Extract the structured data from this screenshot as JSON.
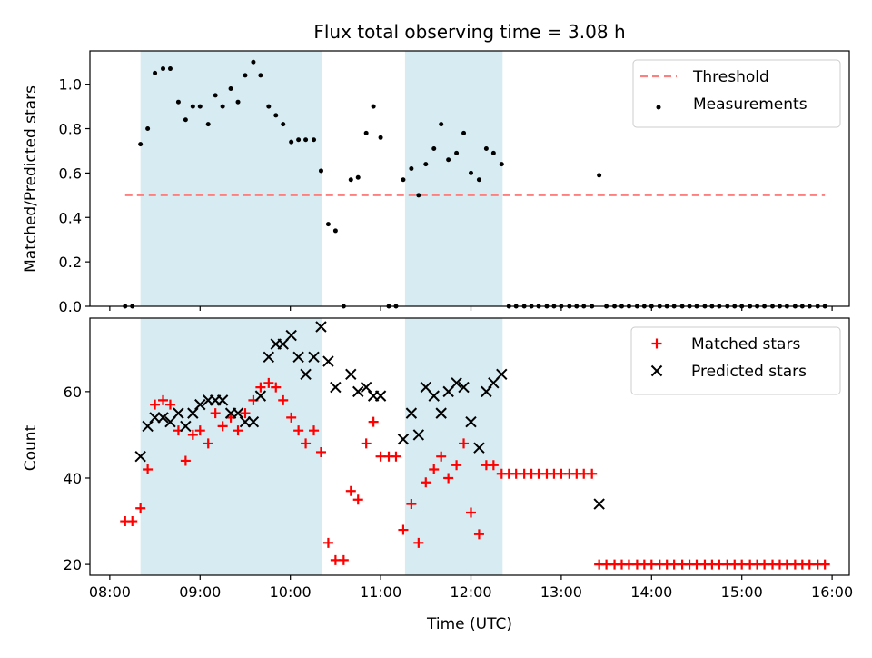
{
  "title": "Flux total observing time = 3.08 h",
  "xlabel": "Time (UTC)",
  "x_ticks": [
    "08:00",
    "09:00",
    "10:00",
    "11:00",
    "12:00",
    "13:00",
    "14:00",
    "15:00",
    "16:00"
  ],
  "x_tick_hours": [
    8,
    9,
    10,
    11,
    12,
    13,
    14,
    15,
    16
  ],
  "xlim": [
    7.78,
    16.19
  ],
  "shaded_intervals": [
    [
      8.34,
      10.35
    ],
    [
      11.27,
      12.35
    ]
  ],
  "shade_color": "#add8e6",
  "chart_data": [
    {
      "type": "scatter",
      "ylabel": "Matched/Predicted stars",
      "ylim": [
        0,
        1.15
      ],
      "y_ticks": [
        "0.0",
        "0.2",
        "0.4",
        "0.6",
        "0.8",
        "1.0"
      ],
      "y_tick_values": [
        0,
        0.2,
        0.4,
        0.6,
        0.8,
        1.0
      ],
      "legend_position": "top-right",
      "threshold": {
        "name": "Threshold",
        "y": 0.5,
        "x_range": [
          8.17,
          15.92
        ],
        "color": "#ff7f7f",
        "style": "dashed"
      },
      "series": [
        {
          "name": "Measurements",
          "color": "#000000",
          "marker": "dot",
          "x": [
            8.17,
            8.25,
            8.34,
            8.42,
            8.5,
            8.59,
            8.67,
            8.76,
            8.84,
            8.92,
            9.0,
            9.09,
            9.17,
            9.25,
            9.34,
            9.42,
            9.5,
            9.59,
            9.67,
            9.76,
            9.84,
            9.92,
            10.01,
            10.09,
            10.17,
            10.26,
            10.34,
            10.42,
            10.5,
            10.59,
            10.67,
            10.75,
            10.84,
            10.92,
            11.0,
            11.09,
            11.17,
            11.25,
            11.34,
            11.42,
            11.5,
            11.59,
            11.67,
            11.75,
            11.84,
            11.92,
            12.0,
            12.09,
            12.17,
            12.25,
            12.34,
            12.42,
            12.5,
            12.59,
            12.67,
            12.75,
            12.84,
            12.92,
            13.0,
            13.09,
            13.17,
            13.25,
            13.34,
            13.42,
            13.5,
            13.59,
            13.67,
            13.75,
            13.84,
            13.92,
            14.0,
            14.09,
            14.17,
            14.25,
            14.34,
            14.42,
            14.5,
            14.59,
            14.67,
            14.75,
            14.84,
            14.92,
            15.0,
            15.09,
            15.17,
            15.25,
            15.34,
            15.42,
            15.5,
            15.59,
            15.67,
            15.75,
            15.84,
            15.92
          ],
          "y": [
            0,
            0,
            0.73,
            0.8,
            1.05,
            1.07,
            1.07,
            0.92,
            0.84,
            0.9,
            0.9,
            0.82,
            0.95,
            0.9,
            0.98,
            0.92,
            1.04,
            1.1,
            1.04,
            0.9,
            0.86,
            0.82,
            0.74,
            0.75,
            0.75,
            0.75,
            0.61,
            0.37,
            0.34,
            0,
            0.57,
            0.58,
            0.78,
            0.9,
            0.76,
            0,
            0,
            0.57,
            0.62,
            0.5,
            0.64,
            0.71,
            0.82,
            0.66,
            0.69,
            0.78,
            0.6,
            0.57,
            0.71,
            0.69,
            0.64,
            0,
            0,
            0,
            0,
            0,
            0,
            0,
            0,
            0,
            0,
            0,
            0,
            0.59,
            0,
            0,
            0,
            0,
            0,
            0,
            0,
            0,
            0,
            0,
            0,
            0,
            0,
            0,
            0,
            0,
            0,
            0,
            0,
            0,
            0,
            0,
            0,
            0,
            0,
            0,
            0,
            0,
            0,
            0
          ]
        }
      ]
    },
    {
      "type": "scatter",
      "ylabel": "Count",
      "ylim": [
        17.5,
        77
      ],
      "y_ticks": [
        "20",
        "40",
        "60"
      ],
      "y_tick_values": [
        20,
        40,
        60
      ],
      "legend_position": "top-right",
      "series": [
        {
          "name": "Matched stars",
          "color": "#ff0000",
          "marker": "plus",
          "x": [
            8.17,
            8.25,
            8.34,
            8.42,
            8.5,
            8.59,
            8.67,
            8.76,
            8.84,
            8.92,
            9.0,
            9.09,
            9.17,
            9.25,
            9.34,
            9.42,
            9.5,
            9.59,
            9.67,
            9.76,
            9.84,
            9.92,
            10.01,
            10.09,
            10.17,
            10.26,
            10.34,
            10.42,
            10.5,
            10.59,
            10.67,
            10.75,
            10.84,
            10.92,
            11.0,
            11.09,
            11.17,
            11.25,
            11.34,
            11.42,
            11.5,
            11.59,
            11.67,
            11.75,
            11.84,
            11.92,
            12.0,
            12.09,
            12.17,
            12.25,
            12.34,
            12.42,
            12.5,
            12.59,
            12.67,
            12.75,
            12.84,
            12.92,
            13.0,
            13.09,
            13.17,
            13.25,
            13.34,
            13.42,
            13.5,
            13.59,
            13.67,
            13.75,
            13.84,
            13.92,
            14.0,
            14.09,
            14.17,
            14.25,
            14.34,
            14.42,
            14.5,
            14.59,
            14.67,
            14.75,
            14.84,
            14.92,
            15.0,
            15.09,
            15.17,
            15.25,
            15.34,
            15.42,
            15.5,
            15.59,
            15.67,
            15.75,
            15.84,
            15.92
          ],
          "y": [
            30,
            30,
            33,
            42,
            57,
            58,
            57,
            51,
            44,
            50,
            51,
            48,
            55,
            52,
            54,
            51,
            55,
            58,
            61,
            62,
            61,
            58,
            54,
            51,
            48,
            51,
            46,
            25,
            21,
            21,
            37,
            35,
            48,
            53,
            45,
            45,
            45,
            28,
            34,
            25,
            39,
            42,
            45,
            40,
            43,
            48,
            32,
            27,
            43,
            43,
            41,
            41,
            41,
            41,
            41,
            41,
            41,
            41,
            41,
            41,
            41,
            41,
            41,
            20,
            20,
            20,
            20,
            20,
            20,
            20,
            20,
            20,
            20,
            20,
            20,
            20,
            20,
            20,
            20,
            20,
            20,
            20,
            20,
            20,
            20,
            20,
            20,
            20,
            20,
            20,
            20,
            20,
            20,
            20
          ]
        },
        {
          "name": "Predicted stars",
          "color": "#000000",
          "marker": "x",
          "x": [
            8.34,
            8.42,
            8.5,
            8.59,
            8.67,
            8.76,
            8.84,
            8.92,
            9.0,
            9.09,
            9.17,
            9.25,
            9.34,
            9.42,
            9.5,
            9.59,
            9.67,
            9.76,
            9.84,
            9.92,
            10.01,
            10.09,
            10.17,
            10.26,
            10.34,
            10.42,
            10.5,
            10.67,
            10.75,
            10.84,
            10.92,
            11.0,
            11.25,
            11.34,
            11.42,
            11.5,
            11.59,
            11.67,
            11.75,
            11.84,
            11.92,
            12.0,
            12.09,
            12.17,
            12.25,
            12.34,
            13.42
          ],
          "y": [
            45,
            52,
            54,
            54,
            53,
            55,
            52,
            55,
            57,
            58,
            58,
            58,
            55,
            55,
            53,
            53,
            59,
            68,
            71,
            71,
            73,
            68,
            64,
            68,
            75,
            67,
            61,
            64,
            60,
            61,
            59,
            59,
            49,
            55,
            50,
            61,
            59,
            55,
            60,
            62,
            61,
            53,
            47,
            60,
            62,
            64,
            34
          ]
        }
      ]
    }
  ]
}
